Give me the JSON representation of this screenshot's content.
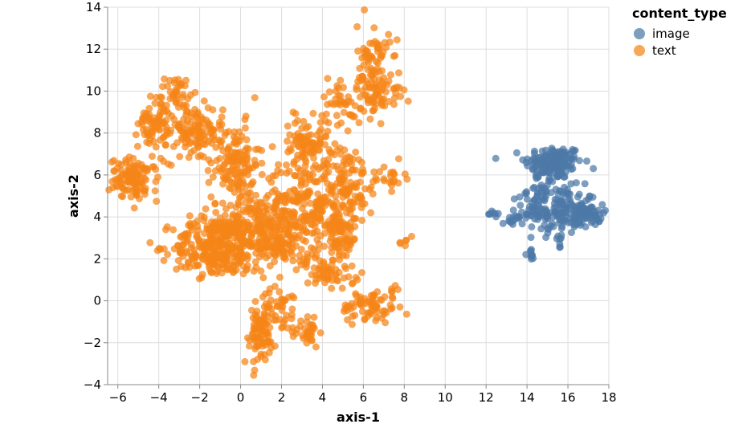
{
  "chart_data": {
    "type": "scatter",
    "xlabel": "axis-1",
    "ylabel": "axis-2",
    "xlim": [
      -6.5,
      18
    ],
    "ylim": [
      -4,
      14
    ],
    "xticks": [
      -6,
      -4,
      -2,
      0,
      2,
      4,
      6,
      8,
      10,
      12,
      14,
      16,
      18
    ],
    "yticks": [
      -4,
      -2,
      0,
      2,
      4,
      6,
      8,
      10,
      12,
      14
    ],
    "grid": true,
    "legend": {
      "title": "content_type",
      "placement": "top-right",
      "entries": [
        {
          "label": "image",
          "color": "#4c78a8"
        },
        {
          "label": "text",
          "color": "#f58518"
        }
      ]
    },
    "series": [
      {
        "name": "image",
        "color": "#4c78a8",
        "clusters": [
          {
            "cx": 15.3,
            "cy": 6.6,
            "sx": 0.7,
            "sy": 0.4,
            "n": 150
          },
          {
            "cx": 15.6,
            "cy": 4.3,
            "sx": 0.9,
            "sy": 0.55,
            "n": 170
          },
          {
            "cx": 17.0,
            "cy": 4.1,
            "sx": 0.35,
            "sy": 0.25,
            "n": 45
          },
          {
            "cx": 13.3,
            "cy": 3.8,
            "sx": 0.25,
            "sy": 0.15,
            "n": 14
          },
          {
            "cx": 12.3,
            "cy": 4.15,
            "sx": 0.2,
            "sy": 0.05,
            "n": 8
          },
          {
            "cx": 14.15,
            "cy": 2.25,
            "sx": 0.12,
            "sy": 0.15,
            "n": 9
          },
          {
            "cx": 15.6,
            "cy": 2.8,
            "sx": 0.12,
            "sy": 0.25,
            "n": 8
          },
          {
            "cx": 14.7,
            "cy": 5.3,
            "sx": 0.35,
            "sy": 0.45,
            "n": 35
          }
        ]
      },
      {
        "name": "text",
        "color": "#f58518",
        "clusters": [
          {
            "cx": -5.2,
            "cy": 5.8,
            "sx": 0.6,
            "sy": 0.5,
            "n": 110
          },
          {
            "cx": -4.2,
            "cy": 8.5,
            "sx": 0.4,
            "sy": 0.6,
            "n": 70
          },
          {
            "cx": -3.1,
            "cy": 10.0,
            "sx": 0.3,
            "sy": 0.35,
            "n": 35
          },
          {
            "cx": -2.3,
            "cy": 8.0,
            "sx": 0.7,
            "sy": 0.7,
            "n": 110
          },
          {
            "cx": -0.3,
            "cy": 6.6,
            "sx": 0.6,
            "sy": 0.9,
            "n": 130
          },
          {
            "cx": -1.3,
            "cy": 2.6,
            "sx": 1.0,
            "sy": 0.7,
            "n": 260
          },
          {
            "cx": 0.4,
            "cy": 3.5,
            "sx": 0.9,
            "sy": 0.9,
            "n": 220
          },
          {
            "cx": 3.2,
            "cy": 4.3,
            "sx": 1.1,
            "sy": 1.2,
            "n": 260
          },
          {
            "cx": 3.2,
            "cy": 7.5,
            "sx": 0.55,
            "sy": 0.6,
            "n": 90
          },
          {
            "cx": 5.2,
            "cy": 5.8,
            "sx": 0.5,
            "sy": 0.8,
            "n": 90
          },
          {
            "cx": 5.0,
            "cy": 3.2,
            "sx": 0.35,
            "sy": 0.9,
            "n": 70
          },
          {
            "cx": 6.5,
            "cy": 11.4,
            "sx": 0.4,
            "sy": 0.9,
            "n": 70
          },
          {
            "cx": 6.8,
            "cy": 9.9,
            "sx": 0.6,
            "sy": 0.5,
            "n": 60
          },
          {
            "cx": 4.9,
            "cy": 9.5,
            "sx": 0.5,
            "sy": 0.6,
            "n": 40
          },
          {
            "cx": 0.9,
            "cy": -1.7,
            "sx": 0.4,
            "sy": 0.7,
            "n": 80
          },
          {
            "cx": 2.0,
            "cy": -0.4,
            "sx": 0.5,
            "sy": 0.5,
            "n": 50
          },
          {
            "cx": 3.4,
            "cy": -1.4,
            "sx": 0.3,
            "sy": 0.4,
            "n": 30
          },
          {
            "cx": 6.3,
            "cy": -0.3,
            "sx": 0.7,
            "sy": 0.4,
            "n": 70
          },
          {
            "cx": 7.2,
            "cy": 5.9,
            "sx": 0.4,
            "sy": 0.3,
            "n": 25
          },
          {
            "cx": 8.0,
            "cy": 2.85,
            "sx": 0.1,
            "sy": 0.1,
            "n": 6
          },
          {
            "cx": 7.5,
            "cy": 0.5,
            "sx": 0.1,
            "sy": 0.15,
            "n": 6
          },
          {
            "cx": 4.1,
            "cy": 1.4,
            "sx": 0.8,
            "sy": 0.5,
            "n": 60
          },
          {
            "cx": 2.0,
            "cy": 2.6,
            "sx": 0.5,
            "sy": 0.4,
            "n": 60
          }
        ]
      }
    ]
  }
}
